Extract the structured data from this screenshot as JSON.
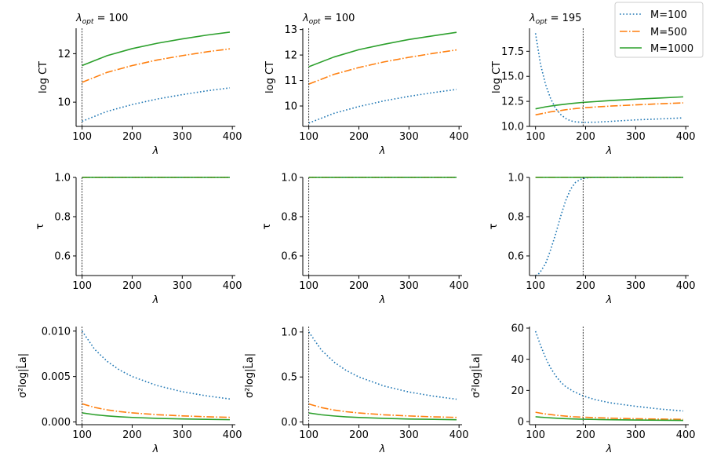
{
  "legend": {
    "entries": [
      {
        "label": "M=100",
        "color": "#1f77b4",
        "style": "dotted"
      },
      {
        "label": "M=500",
        "color": "#ff7f0e",
        "style": "dashdot"
      },
      {
        "label": "M=1000",
        "color": "#2ca02c",
        "style": "solid"
      }
    ],
    "placement": "top-right"
  },
  "columns": [
    {
      "title_var": "λ",
      "title_sub": "opt",
      "title_value": "= 100",
      "lambda_opt": 100
    },
    {
      "title_var": "λ",
      "title_sub": "opt",
      "title_value": "= 100",
      "lambda_opt": 100
    },
    {
      "title_var": "λ",
      "title_sub": "opt",
      "title_value": "= 195",
      "lambda_opt": 195
    }
  ],
  "chart_data": [
    {
      "type": "line",
      "row": 0,
      "col": 0,
      "title": "λopt = 100",
      "xlabel": "λ",
      "ylabel": "log CT",
      "xlim": [
        88,
        406
      ],
      "ylim": [
        9.0,
        13.05
      ],
      "xticks": [
        100,
        200,
        300,
        400
      ],
      "yticks": [
        10,
        12
      ],
      "x": [
        100,
        150,
        200,
        250,
        300,
        350,
        395
      ],
      "series": [
        {
          "name": "M=100",
          "values": [
            9.21,
            9.62,
            9.9,
            10.13,
            10.31,
            10.47,
            10.59
          ]
        },
        {
          "name": "M=500",
          "values": [
            10.82,
            11.23,
            11.51,
            11.74,
            11.92,
            12.08,
            12.2
          ]
        },
        {
          "name": "M=1000",
          "values": [
            11.51,
            11.92,
            12.21,
            12.43,
            12.61,
            12.77,
            12.89
          ]
        }
      ]
    },
    {
      "type": "line",
      "row": 0,
      "col": 1,
      "title": "λopt = 100",
      "xlabel": "λ",
      "ylabel": "log CT",
      "xlim": [
        88,
        406
      ],
      "ylim": [
        9.2,
        13.05
      ],
      "xticks": [
        100,
        200,
        300,
        400
      ],
      "yticks": [
        10,
        11,
        12,
        13
      ],
      "x": [
        100,
        150,
        200,
        250,
        300,
        350,
        395
      ],
      "series": [
        {
          "name": "M=100",
          "values": [
            9.33,
            9.71,
            9.98,
            10.2,
            10.38,
            10.53,
            10.65
          ]
        },
        {
          "name": "M=500",
          "values": [
            10.86,
            11.24,
            11.51,
            11.73,
            11.91,
            12.07,
            12.2
          ]
        },
        {
          "name": "M=1000",
          "values": [
            11.54,
            11.92,
            12.21,
            12.42,
            12.61,
            12.76,
            12.89
          ]
        }
      ]
    },
    {
      "type": "line",
      "row": 0,
      "col": 2,
      "title": "λopt = 195",
      "xlabel": "λ",
      "ylabel": "log CT",
      "xlim": [
        88,
        406
      ],
      "ylim": [
        10.0,
        19.8
      ],
      "xticks": [
        100,
        200,
        300,
        400
      ],
      "yticks": [
        10.0,
        12.5,
        15.0,
        17.5
      ],
      "x": [
        100,
        110,
        120,
        130,
        140,
        150,
        160,
        170,
        180,
        195,
        220,
        250,
        300,
        350,
        395
      ],
      "series": [
        {
          "name": "M=100",
          "values": [
            19.3,
            16.2,
            14.2,
            12.8,
            11.8,
            11.2,
            10.8,
            10.55,
            10.45,
            10.4,
            10.42,
            10.5,
            10.65,
            10.75,
            10.85
          ]
        },
        {
          "name": "M=500",
          "values": [
            11.15,
            11.25,
            11.35,
            11.45,
            11.52,
            11.58,
            11.66,
            11.72,
            11.78,
            11.85,
            11.94,
            12.03,
            12.15,
            12.26,
            12.35
          ]
        },
        {
          "name": "M=1000",
          "values": [
            11.75,
            11.85,
            11.95,
            12.03,
            12.1,
            12.16,
            12.22,
            12.28,
            12.33,
            12.4,
            12.48,
            12.58,
            12.72,
            12.84,
            12.95
          ]
        }
      ]
    },
    {
      "type": "line",
      "row": 1,
      "col": 0,
      "title": "",
      "xlabel": "λ",
      "ylabel": "τ",
      "xlim": [
        88,
        406
      ],
      "ylim": [
        0.5,
        1.0
      ],
      "xticks": [
        100,
        200,
        300,
        400
      ],
      "yticks": [
        0.6,
        0.8,
        1.0
      ],
      "x": [
        100,
        395
      ],
      "series": [
        {
          "name": "M=100",
          "values": [
            1.0,
            1.0
          ]
        },
        {
          "name": "M=500",
          "values": [
            1.0,
            1.0
          ]
        },
        {
          "name": "M=1000",
          "values": [
            1.0,
            1.0
          ]
        }
      ]
    },
    {
      "type": "line",
      "row": 1,
      "col": 1,
      "title": "",
      "xlabel": "λ",
      "ylabel": "τ",
      "xlim": [
        88,
        406
      ],
      "ylim": [
        0.5,
        1.0
      ],
      "xticks": [
        100,
        200,
        300,
        400
      ],
      "yticks": [
        0.6,
        0.8,
        1.0
      ],
      "x": [
        100,
        395
      ],
      "series": [
        {
          "name": "M=100",
          "values": [
            1.0,
            1.0
          ]
        },
        {
          "name": "M=500",
          "values": [
            1.0,
            1.0
          ]
        },
        {
          "name": "M=1000",
          "values": [
            1.0,
            1.0
          ]
        }
      ]
    },
    {
      "type": "line",
      "row": 1,
      "col": 2,
      "title": "",
      "xlabel": "λ",
      "ylabel": "τ",
      "xlim": [
        88,
        406
      ],
      "ylim": [
        0.5,
        1.0
      ],
      "xticks": [
        100,
        200,
        300,
        400
      ],
      "yticks": [
        0.6,
        0.8,
        1.0
      ],
      "x": [
        100,
        105,
        110,
        120,
        130,
        140,
        150,
        160,
        170,
        180,
        190,
        200,
        210,
        220,
        395
      ],
      "series": [
        {
          "name": "M=100",
          "values": [
            0.5,
            0.505,
            0.52,
            0.56,
            0.63,
            0.71,
            0.8,
            0.88,
            0.94,
            0.975,
            0.99,
            0.997,
            0.999,
            1.0,
            1.0
          ]
        },
        {
          "name": "M=500",
          "values": [
            1.0,
            1.0,
            1.0,
            1.0,
            1.0,
            1.0,
            1.0,
            1.0,
            1.0,
            1.0,
            1.0,
            1.0,
            1.0,
            1.0,
            1.0
          ]
        },
        {
          "name": "M=1000",
          "values": [
            1.0,
            1.0,
            1.0,
            1.0,
            1.0,
            1.0,
            1.0,
            1.0,
            1.0,
            1.0,
            1.0,
            1.0,
            1.0,
            1.0,
            1.0
          ]
        }
      ]
    },
    {
      "type": "line",
      "row": 2,
      "col": 0,
      "title": "",
      "xlabel": "λ",
      "ylabel": "σ²log|L̂a|",
      "xlim": [
        88,
        406
      ],
      "ylim": [
        -0.0003,
        0.0105
      ],
      "xticks": [
        100,
        200,
        300,
        400
      ],
      "yticks": [
        0.0,
        0.005,
        0.01
      ],
      "ytick_labels": [
        "0.000",
        "0.005",
        "0.010"
      ],
      "x": [
        100,
        125,
        150,
        175,
        200,
        250,
        300,
        350,
        395
      ],
      "series": [
        {
          "name": "M=100",
          "values": [
            0.01,
            0.008,
            0.00667,
            0.00571,
            0.005,
            0.004,
            0.00333,
            0.00286,
            0.00253
          ]
        },
        {
          "name": "M=500",
          "values": [
            0.002,
            0.0016,
            0.00133,
            0.00114,
            0.001,
            0.0008,
            0.00067,
            0.00057,
            0.00051
          ]
        },
        {
          "name": "M=1000",
          "values": [
            0.001,
            0.0008,
            0.00067,
            0.00057,
            0.0005,
            0.0004,
            0.00033,
            0.00029,
            0.00025
          ]
        }
      ]
    },
    {
      "type": "line",
      "row": 2,
      "col": 1,
      "title": "",
      "xlabel": "λ",
      "ylabel": "σ²log|L̂a|",
      "xlim": [
        88,
        406
      ],
      "ylim": [
        -0.03,
        1.06
      ],
      "xticks": [
        100,
        200,
        300,
        400
      ],
      "yticks": [
        0.0,
        0.5,
        1.0
      ],
      "ytick_labels": [
        "0.0",
        "0.5",
        "1.0"
      ],
      "x": [
        100,
        125,
        150,
        175,
        200,
        250,
        300,
        350,
        395
      ],
      "series": [
        {
          "name": "M=100",
          "values": [
            1.0,
            0.8,
            0.667,
            0.571,
            0.5,
            0.4,
            0.333,
            0.286,
            0.253
          ]
        },
        {
          "name": "M=500",
          "values": [
            0.2,
            0.16,
            0.133,
            0.114,
            0.1,
            0.08,
            0.067,
            0.057,
            0.051
          ]
        },
        {
          "name": "M=1000",
          "values": [
            0.1,
            0.08,
            0.067,
            0.057,
            0.05,
            0.04,
            0.033,
            0.029,
            0.025
          ]
        }
      ]
    },
    {
      "type": "line",
      "row": 2,
      "col": 2,
      "title": "",
      "xlabel": "λ",
      "ylabel": "σ²log|L̂a|",
      "xlim": [
        88,
        406
      ],
      "ylim": [
        -2,
        61
      ],
      "xticks": [
        100,
        200,
        300,
        400
      ],
      "yticks": [
        0,
        20,
        40,
        60
      ],
      "ytick_labels": [
        "0",
        "20",
        "40",
        "60"
      ],
      "x": [
        100,
        110,
        120,
        130,
        140,
        150,
        160,
        175,
        195,
        220,
        250,
        300,
        350,
        395
      ],
      "series": [
        {
          "name": "M=100",
          "values": [
            58,
            49,
            41,
            34.5,
            29.5,
            25.5,
            22.5,
            19.5,
            16.5,
            14,
            12,
            9.8,
            8.0,
            6.8
          ]
        },
        {
          "name": "M=500",
          "values": [
            6.0,
            5.4,
            4.9,
            4.5,
            4.1,
            3.8,
            3.5,
            3.1,
            2.8,
            2.5,
            2.2,
            1.8,
            1.6,
            1.4
          ]
        },
        {
          "name": "M=1000",
          "values": [
            3.1,
            2.8,
            2.6,
            2.4,
            2.2,
            2.0,
            1.85,
            1.7,
            1.5,
            1.35,
            1.2,
            1.0,
            0.85,
            0.75
          ]
        }
      ]
    }
  ]
}
